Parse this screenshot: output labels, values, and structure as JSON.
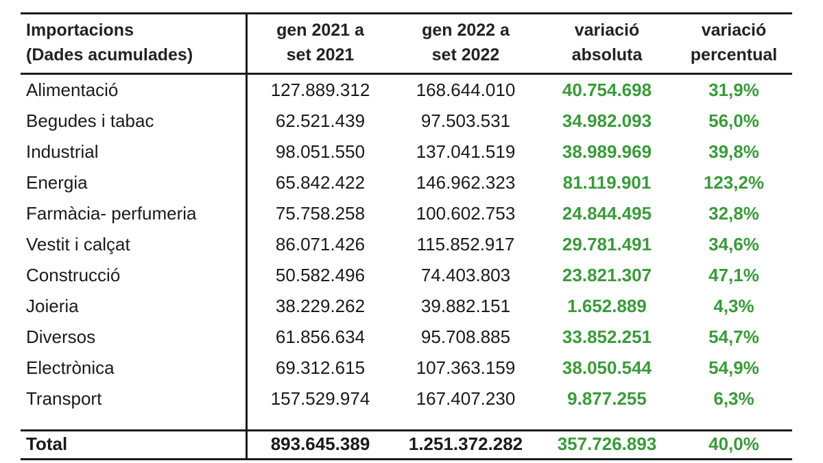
{
  "table": {
    "headers": [
      [
        "Importacions",
        "(Dades acumulades)"
      ],
      [
        "gen 2021 a",
        "set 2021"
      ],
      [
        "gen 2022 a",
        "set 2022"
      ],
      [
        "variació",
        "absoluta"
      ],
      [
        "variació",
        "percentual"
      ]
    ],
    "rows": [
      [
        "Alimentació",
        "127.889.312",
        "168.644.010",
        "40.754.698",
        "31,9%"
      ],
      [
        "Begudes i tabac",
        "62.521.439",
        "97.503.531",
        "34.982.093",
        "56,0%"
      ],
      [
        "Industrial",
        "98.051.550",
        "137.041.519",
        "38.989.969",
        "39,8%"
      ],
      [
        "Energia",
        "65.842.422",
        "146.962.323",
        "81.119.901",
        "123,2%"
      ],
      [
        "Farmàcia- perfumeria",
        "75.758.258",
        "100.602.753",
        "24.844.495",
        "32,8%"
      ],
      [
        "Vestit i calçat",
        "86.071.426",
        "115.852.917",
        "29.781.491",
        "34,6%"
      ],
      [
        "Construcció",
        "50.582.496",
        "74.403.803",
        "23.821.307",
        "47,1%"
      ],
      [
        "Joieria",
        "38.229.262",
        "39.882.151",
        "1.652.889",
        "4,3%"
      ],
      [
        "Diversos",
        "61.856.634",
        "95.708.885",
        "33.852.251",
        "54,7%"
      ],
      [
        "Electrònica",
        "69.312.615",
        "107.363.159",
        "38.050.544",
        "54,9%"
      ],
      [
        "Transport",
        "157.529.974",
        "167.407.230",
        "9.877.255",
        "6,3%"
      ]
    ],
    "total": [
      "Total",
      "893.645.389",
      "1.251.372.282",
      "357.726.893",
      "40,0%"
    ]
  },
  "colors": {
    "text": "#1a1a1a",
    "variation_green": "#3a9a3a",
    "rule": "#1a1a1a",
    "background": "#ffffff"
  }
}
